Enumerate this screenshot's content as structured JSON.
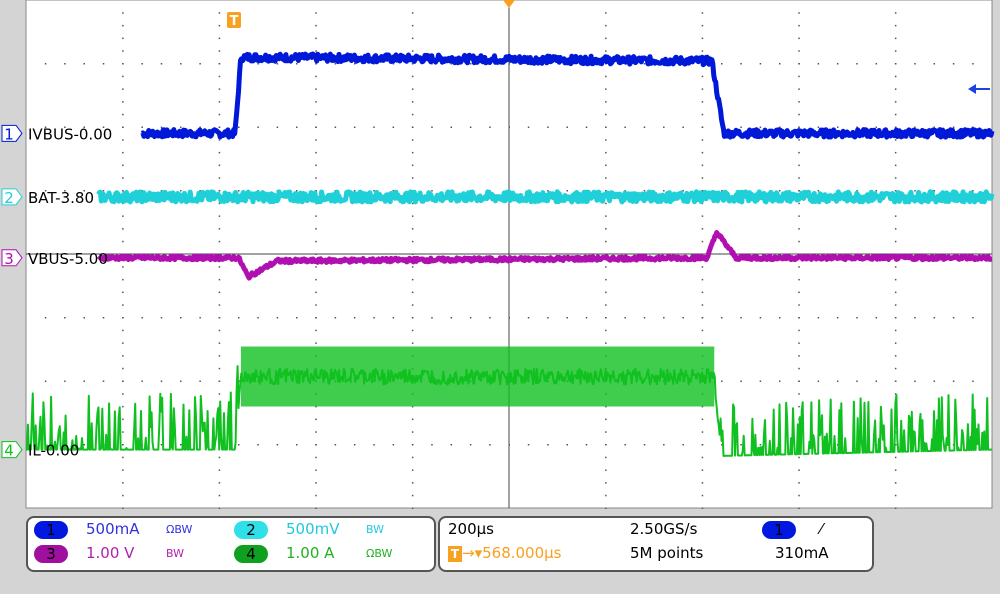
{
  "chart_data": {
    "type": "line",
    "x_unit": "µs",
    "xlim": [
      -1000,
      1000
    ],
    "x_divisions": 10,
    "y_divisions": 8,
    "grid": true,
    "trigger_marker": "T",
    "series": [
      {
        "name": "IVBUS-0.00",
        "channel": "1",
        "color": "#0018d8",
        "scale_per_div": 0.5,
        "unit": "A",
        "offset_div": 1.9,
        "points": [
          [
            -1000,
            0
          ],
          [
            -567,
            0
          ],
          [
            -555,
            0.6
          ],
          [
            420,
            0.57
          ],
          [
            445,
            0
          ],
          [
            1000,
            0
          ]
        ],
        "noise": 0.03
      },
      {
        "name": "BAT-3.80",
        "channel": "2",
        "color": "#20d0d8",
        "scale_per_div": 0.5,
        "unit": "V",
        "offset_div": 0.9,
        "points": [
          [
            -1000,
            3.8
          ],
          [
            1000,
            3.8
          ]
        ],
        "noise": 0.04
      },
      {
        "name": "VBUS-5.00",
        "channel": "3",
        "color": "#b010b0",
        "scale_per_div": 1.0,
        "unit": "V",
        "offset_div": -0.06,
        "points": [
          [
            -1000,
            5.0
          ],
          [
            -560,
            5.0
          ],
          [
            -540,
            4.7
          ],
          [
            -480,
            4.95
          ],
          [
            1000,
            5.0
          ],
          [
            410,
            5.0
          ],
          [
            430,
            5.4
          ],
          [
            470,
            5.0
          ]
        ],
        "noise": 0.03
      },
      {
        "name": "IL-0.00",
        "channel": "4",
        "color": "#10c020",
        "scale_per_div": 1.0,
        "unit": "A",
        "offset_div": -3.08,
        "points": [
          [
            -1000,
            0
          ],
          [
            -567,
            0
          ],
          [
            -555,
            1.15
          ],
          [
            425,
            1.15
          ],
          [
            440,
            -0.1
          ],
          [
            1000,
            0
          ]
        ],
        "noise": 0.6
      }
    ]
  },
  "channels": [
    {
      "num": "1",
      "scale": "500mA",
      "flags": "ΩBW",
      "color": "#3030e0",
      "badge": "#0018e0"
    },
    {
      "num": "2",
      "scale": "500mV",
      "flags": "BW",
      "color": "#20c8e0",
      "badge": "#30e0e8"
    },
    {
      "num": "3",
      "scale": "1.00 V",
      "flags": "BW",
      "color": "#b020b0",
      "badge": "#a010a0"
    },
    {
      "num": "4",
      "scale": "1.00 A",
      "flags": "ΩBW",
      "color": "#20b020",
      "badge": "#10a020"
    }
  ],
  "timebase": {
    "scale": "200µs",
    "sample_rate": "2.50GS/s",
    "trigger_pos": "568.000µs",
    "record": "5M points"
  },
  "trigger": {
    "channel": "1",
    "slope": "rising",
    "slope_glyph": "⁄",
    "level": "310mA"
  },
  "colors": {
    "trigger": "#f8a020"
  }
}
